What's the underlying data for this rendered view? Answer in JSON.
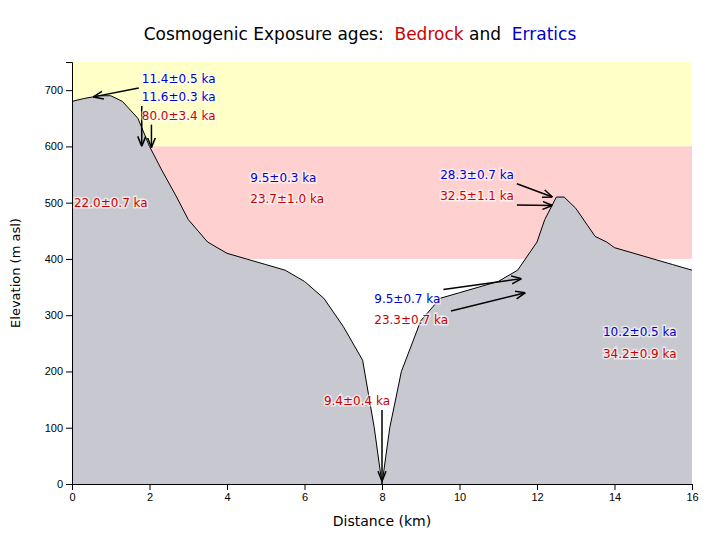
{
  "chart_data": {
    "type": "area",
    "title": [
      {
        "text": "Cosmogenic Exposure ages:  ",
        "color": "black"
      },
      {
        "text": "Bedrock",
        "color": "#cc0000"
      },
      {
        "text": " and  ",
        "color": "black"
      },
      {
        "text": "Erratics",
        "color": "#0000cc"
      }
    ],
    "xlabel": "Distance (km)",
    "ylabel": "Elevation (m asl)",
    "xlim": [
      0,
      16
    ],
    "ylim": [
      0,
      750
    ],
    "xticks": [
      0,
      2,
      4,
      6,
      8,
      10,
      12,
      14,
      16
    ],
    "yticks": [
      0,
      100,
      200,
      300,
      400,
      500,
      600,
      700
    ],
    "grid": false,
    "color": "#c8c8d0",
    "bands": [
      {
        "ymin": 600,
        "ymax": 750,
        "color": "#ffffc8"
      },
      {
        "ymin": 400,
        "ymax": 600,
        "color": "#ffd0d0"
      }
    ],
    "x": [
      0.0,
      0.3,
      0.7,
      1.0,
      1.3,
      1.7,
      2.0,
      2.3,
      2.7,
      3.0,
      3.5,
      4.0,
      4.5,
      5.0,
      5.5,
      6.0,
      6.5,
      7.0,
      7.5,
      7.8,
      8.0,
      8.2,
      8.5,
      9.0,
      9.5,
      10.0,
      10.5,
      11.0,
      11.5,
      12.0,
      12.2,
      12.5,
      12.7,
      13.0,
      13.3,
      13.5,
      13.8,
      14.0,
      14.5,
      15.0,
      15.5,
      16.0
    ],
    "values": [
      680,
      685,
      690,
      690,
      680,
      650,
      600,
      560,
      510,
      470,
      430,
      410,
      400,
      390,
      380,
      360,
      330,
      280,
      220,
      100,
      0,
      100,
      200,
      290,
      330,
      340,
      350,
      360,
      380,
      430,
      470,
      510,
      510,
      490,
      460,
      440,
      430,
      420,
      410,
      400,
      390,
      380
    ],
    "annotations": [
      {
        "text": "11.4±0.5 ka",
        "color": "#0000cc",
        "x": 1.8,
        "y": 720,
        "arrow_x": 0.55,
        "arrow_y": 688
      },
      {
        "text": "11.6±0.3 ka",
        "color": "#0000cc",
        "x": 1.8,
        "y": 688,
        "arrow_x": 1.8,
        "arrow_y": 600
      },
      {
        "text": "80.0±3.4 ka",
        "color": "#cc0000",
        "x": 1.8,
        "y": 655,
        "arrow_x": 2.05,
        "arrow_y": 598
      },
      {
        "text": "22.0±0.7 ka",
        "color": "#cc0000",
        "x": 0.05,
        "y": 500
      },
      {
        "text": "9.5±0.3 ka",
        "color": "#0000cc",
        "x": 4.6,
        "y": 545
      },
      {
        "text": "23.7±1.0 ka",
        "color": "#cc0000",
        "x": 4.6,
        "y": 507
      },
      {
        "text": "28.3±0.7 ka",
        "color": "#0000cc",
        "x": 9.5,
        "y": 550,
        "arrow_x": 12.4,
        "arrow_y": 510
      },
      {
        "text": "32.5±1.1 ka",
        "color": "#cc0000",
        "x": 9.5,
        "y": 512,
        "arrow_x": 12.4,
        "arrow_y": 495
      },
      {
        "text": "9.5±0.7 ka",
        "color": "#0000cc",
        "x": 7.8,
        "y": 330,
        "arrow_x": 11.6,
        "arrow_y": 365
      },
      {
        "text": "23.3±0.7 ka",
        "color": "#cc0000",
        "x": 7.8,
        "y": 292,
        "arrow_x": 11.7,
        "arrow_y": 340
      },
      {
        "text": "10.2±0.5 ka",
        "color": "#0000cc",
        "x": 13.7,
        "y": 270
      },
      {
        "text": "34.2±0.9 ka",
        "color": "#cc0000",
        "x": 13.7,
        "y": 232
      },
      {
        "text": "9.4±0.4 ka",
        "color": "#cc0000",
        "x": 6.5,
        "y": 148,
        "arrow_x": 8.0,
        "arrow_y": 5
      }
    ]
  }
}
